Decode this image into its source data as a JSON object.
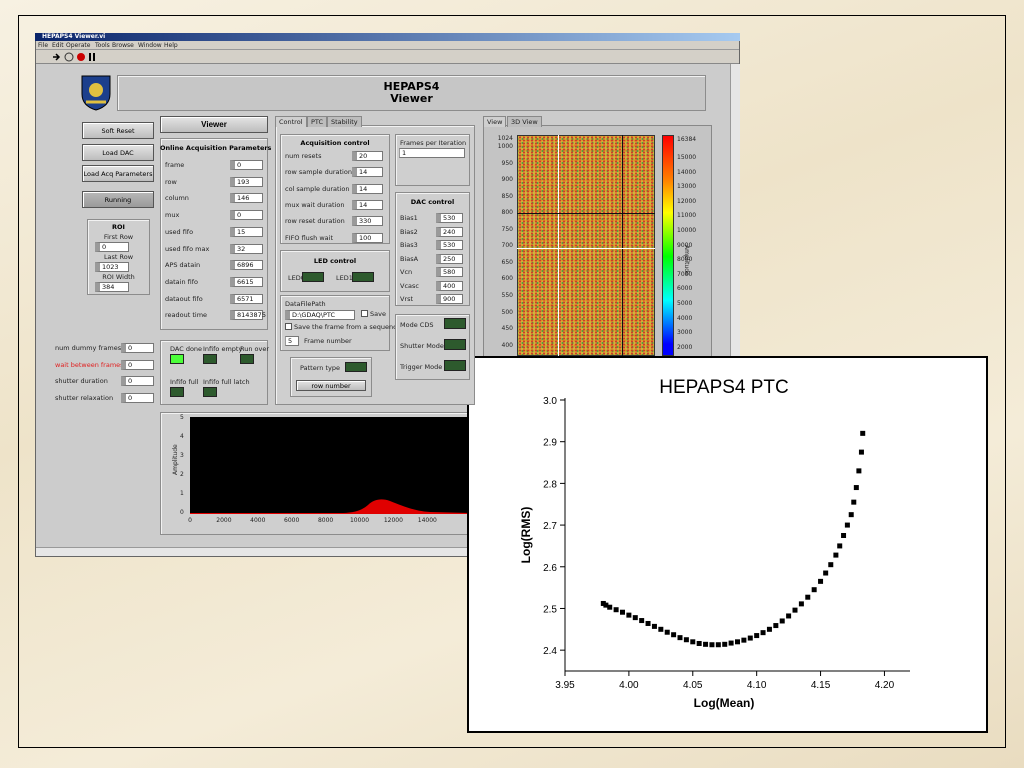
{
  "window": {
    "title": "HEPAPS4 Viewer.vi",
    "menu": [
      "File",
      "Edit",
      "Operate",
      "Tools",
      "Browse",
      "Window",
      "Help"
    ]
  },
  "panel": {
    "header": [
      "HEPAPS4",
      "Viewer"
    ],
    "buttons": [
      "Soft Reset",
      "Load DAC",
      "Load Acq Parameters",
      "Running"
    ],
    "roi": {
      "title": "ROI",
      "fields": [
        {
          "label": "First Row",
          "value": 0
        },
        {
          "label": "Last Row",
          "value": 1023
        },
        {
          "label": "ROI Width",
          "value": 384
        }
      ]
    },
    "viewer_select": "Viewer",
    "online": {
      "title": "Online Acquisition Parameters",
      "rows": [
        [
          "frame",
          0
        ],
        [
          "row",
          193
        ],
        [
          "column",
          146
        ],
        [
          "mux",
          0
        ],
        [
          "used fifo",
          15
        ],
        [
          "used fifo max",
          32
        ],
        [
          "APS datain",
          6896
        ],
        [
          "datain fifo",
          6615
        ],
        [
          "dataout fifo",
          6571
        ],
        [
          "readout time",
          8143875
        ]
      ]
    },
    "timing": [
      [
        "num dummy frames",
        0
      ],
      [
        "wait between frames",
        0
      ],
      [
        "shutter duration",
        0
      ],
      [
        "shutter relaxation",
        0
      ]
    ],
    "leds": [
      "DAC done",
      "Infifo empty",
      "Run over",
      "Infifo full",
      "Infifo full latch"
    ],
    "tabs": [
      "Control",
      "PTC",
      "Stability"
    ],
    "acquisition": {
      "title": "Acquisition control",
      "rows": [
        [
          "num resets",
          20
        ],
        [
          "row sample duration",
          14
        ],
        [
          "col sample duration",
          14
        ],
        [
          "mux wait duration",
          14
        ],
        [
          "row reset duration",
          330
        ],
        [
          "FIFO flush wait",
          100
        ]
      ]
    },
    "frames": {
      "title": "Frames per Iteration",
      "value": 1
    },
    "led_control": {
      "title": "LED control",
      "leds": [
        "LED0",
        "LED1"
      ]
    },
    "dac": {
      "title": "DAC control",
      "rows": [
        [
          "Bias1",
          530
        ],
        [
          "Bias2",
          240
        ],
        [
          "Bias3",
          530
        ],
        [
          "BiasA",
          250
        ],
        [
          "Vcn",
          580
        ],
        [
          "Vcasc",
          400
        ],
        [
          "Vrst",
          900
        ]
      ]
    },
    "file": {
      "title": "DataFilePath",
      "path": "D:\\GDAQ\\PTC",
      "save": "Save",
      "sequence": "Save the frame from a sequence",
      "frame_number": 5,
      "frame_label": "Frame number"
    },
    "modes": [
      "Mode CDS",
      "Shutter Mode",
      "Trigger Mode"
    ],
    "pattern": {
      "title": "Pattern type",
      "value": "row number"
    },
    "view_tabs": [
      "View",
      "3D View"
    ],
    "image": {
      "yticks": [
        "1024",
        "1000",
        "950",
        "900",
        "850",
        "800",
        "750",
        "700",
        "650",
        "600",
        "550",
        "500",
        "450",
        "400"
      ],
      "colorbar": [
        "16384",
        "15000",
        "14000",
        "13000",
        "12000",
        "11000",
        "10000",
        "9000",
        "8000",
        "7000",
        "6000",
        "5000",
        "4000",
        "3000",
        "2000"
      ],
      "colorbar_label": "Amplitude"
    },
    "waveform": {
      "yticks": [
        "0",
        "1",
        "2",
        "3",
        "4",
        "5"
      ],
      "xticks": [
        "0",
        "2000",
        "4000",
        "6000",
        "8000",
        "10000",
        "12000",
        "14000"
      ],
      "y_label": "Amplitude"
    }
  },
  "chart_data": {
    "type": "scatter",
    "title": "HEPAPS4 PTC",
    "x_label": "Log(Mean)",
    "y_label": "Log(RMS)",
    "color": "#000000",
    "x": [
      3.98,
      3.982,
      3.985,
      3.99,
      3.995,
      4.0,
      4.005,
      4.01,
      4.015,
      4.02,
      4.025,
      4.03,
      4.035,
      4.04,
      4.045,
      4.05,
      4.055,
      4.06,
      4.065,
      4.07,
      4.075,
      4.08,
      4.085,
      4.09,
      4.095,
      4.1,
      4.105,
      4.11,
      4.115,
      4.12,
      4.125,
      4.13,
      4.135,
      4.14,
      4.145,
      4.15,
      4.154,
      4.158,
      4.162,
      4.165,
      4.168,
      4.171,
      4.174,
      4.176,
      4.178,
      4.18,
      4.182,
      4.183
    ],
    "values": [
      2.512,
      2.508,
      2.503,
      2.497,
      2.491,
      2.484,
      2.478,
      2.471,
      2.464,
      2.457,
      2.45,
      2.443,
      2.437,
      2.43,
      2.425,
      2.42,
      2.416,
      2.414,
      2.413,
      2.413,
      2.414,
      2.417,
      2.42,
      2.424,
      2.429,
      2.435,
      2.442,
      2.45,
      2.459,
      2.47,
      2.482,
      2.496,
      2.511,
      2.527,
      2.545,
      2.565,
      2.585,
      2.605,
      2.628,
      2.65,
      2.675,
      2.7,
      2.725,
      2.755,
      2.79,
      2.83,
      2.875,
      2.92
    ],
    "xlim": [
      3.95,
      4.22
    ],
    "ylim": [
      2.35,
      3.0
    ],
    "xticks": [
      3.95,
      {
        "value": 4,
        "label": "4.00"
      },
      4.05,
      {
        "value": 4.1,
        "label": "4.10"
      },
      4.15,
      {
        "value": 4.2,
        "label": "4.20"
      }
    ],
    "yticks": [
      2.4,
      2.5,
      2.6,
      2.7,
      2.8,
      2.9,
      {
        "value": 3,
        "label": "3.0"
      }
    ]
  }
}
